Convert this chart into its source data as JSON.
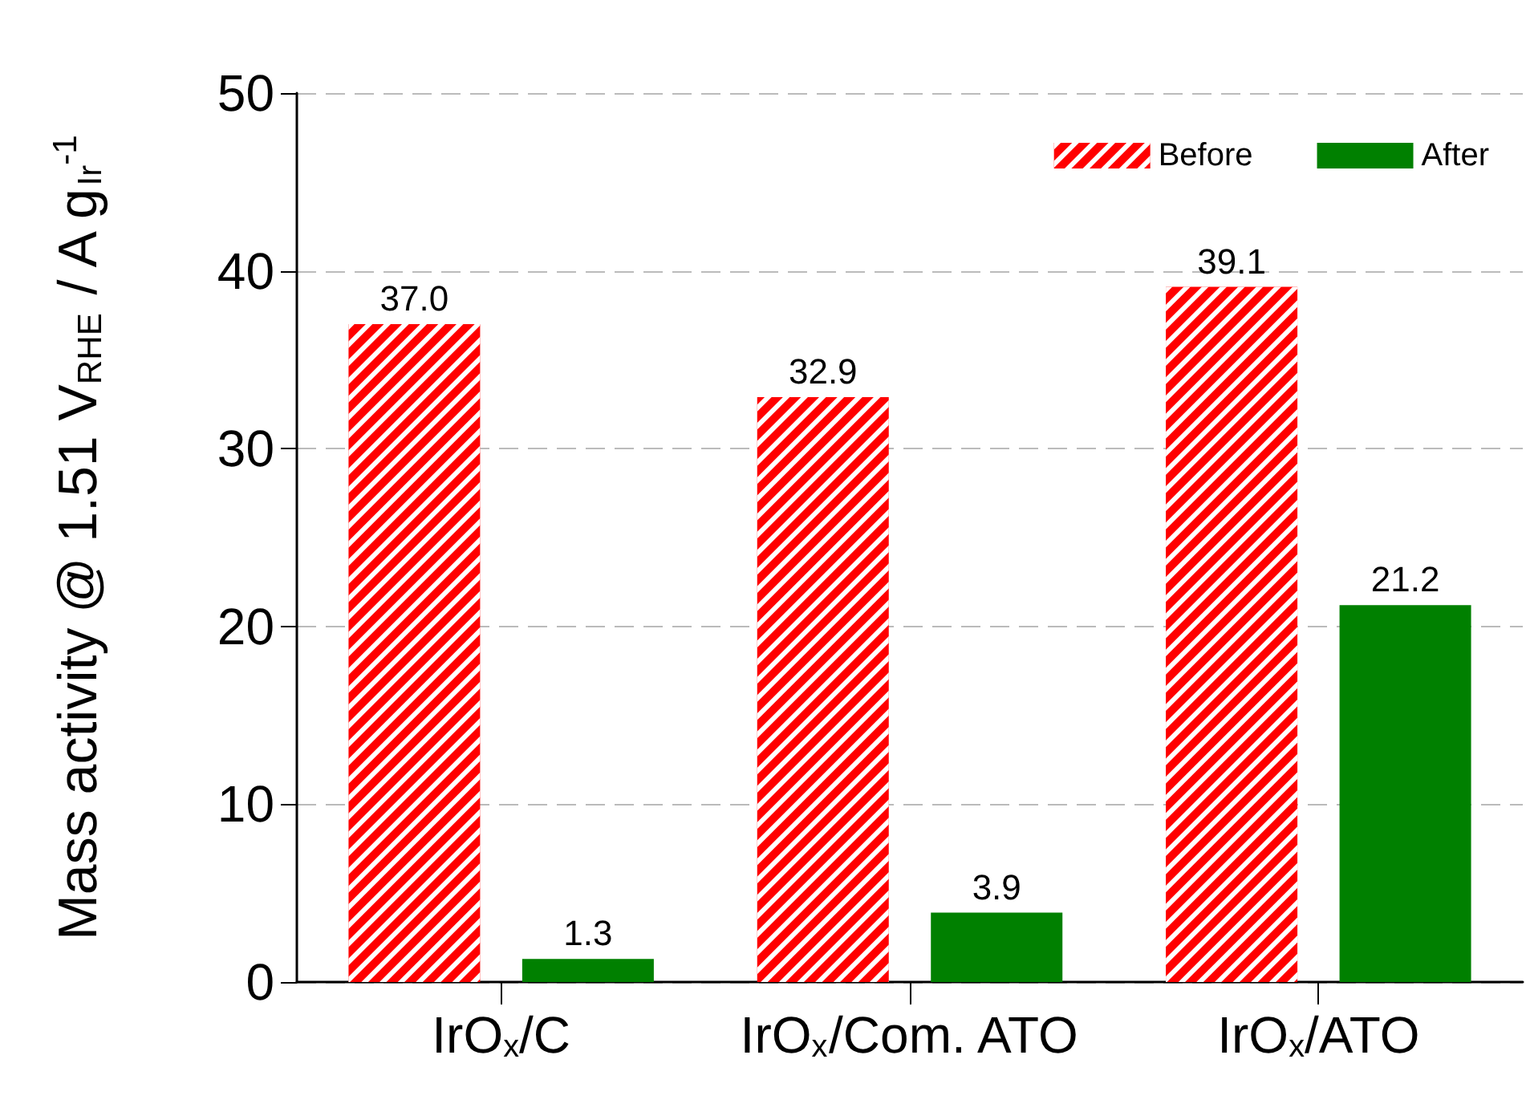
{
  "chart_data": {
    "type": "bar",
    "ylabel": "Mass activity @ 1.51 V$_{RHE}$ / A g$_{Ir}$$^{-1}$",
    "categories": [
      "IrO$_{x}$/C",
      "IrO$_{x}$/Com. ATO",
      "IrO$_{x}$/ATO"
    ],
    "series": [
      {
        "name": "Before",
        "color": "#ff0000",
        "values": [
          37.0,
          32.9,
          39.1
        ],
        "value_labels": [
          "37.0",
          "32.9",
          "39.1"
        ]
      },
      {
        "name": "After",
        "color": "#008000",
        "values": [
          1.3,
          3.9,
          21.2
        ],
        "value_labels": [
          "1.3",
          "3.9",
          "21.2"
        ]
      }
    ],
    "ylim": [
      0,
      50
    ],
    "yticks": [
      0,
      10,
      20,
      30,
      40,
      50
    ],
    "grid": "y",
    "legend": "top right"
  }
}
